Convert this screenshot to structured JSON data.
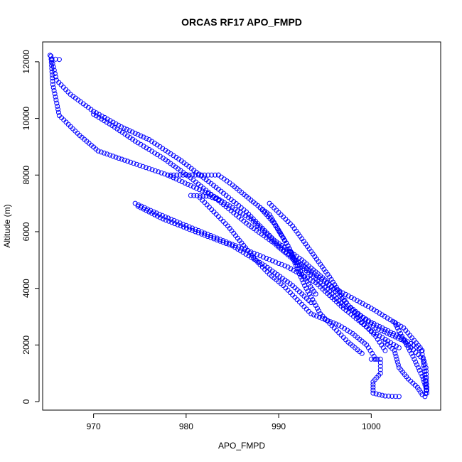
{
  "chart_data": {
    "type": "scatter",
    "title": "ORCAS RF17 APO_FMPD",
    "xlabel": "APO_FMPD",
    "ylabel": "Altitude (m)",
    "xlim": [
      964.5,
      1007.5
    ],
    "ylim": [
      -300,
      12700
    ],
    "xticks": [
      970,
      980,
      990,
      1000
    ],
    "yticks": [
      0,
      2000,
      4000,
      6000,
      8000,
      10000,
      12000
    ],
    "grid": false,
    "marker": "open-circle",
    "color": "#0000ff",
    "segments": [
      {
        "x": [
          965.3,
          965.5,
          966.3
        ],
        "y": [
          12230,
          12100,
          12080
        ]
      },
      {
        "x": [
          965.4,
          965.6,
          966.3,
          968.5,
          970.5,
          974.0,
          978.0,
          983.0,
          987.0,
          990.0,
          993.0,
          996.0,
          1000.0,
          1003.5,
          1005.3,
          1005.9,
          1006.0,
          1005.8
        ],
        "y": [
          12200,
          11200,
          10100,
          9400,
          8850,
          8450,
          8000,
          7250,
          6450,
          5500,
          4700,
          4000,
          3300,
          2600,
          1900,
          1200,
          500,
          180
        ]
      },
      {
        "x": [
          965.5,
          966.0,
          967.5,
          970.0,
          973.0,
          976.0,
          979.5,
          983.5,
          986.5,
          989.5,
          992.5,
          995.0,
          997.5,
          1000.5,
          1003.5,
          1005.6,
          1006.0
        ],
        "y": [
          12050,
          11350,
          10850,
          10250,
          9700,
          9250,
          8500,
          7500,
          6700,
          5700,
          5000,
          4300,
          3400,
          2600,
          2150,
          1500,
          300
        ]
      },
      {
        "x": [
          970.0,
          972.0,
          974.5,
          977.5,
          980.5,
          983.5,
          986.5,
          989.5,
          992.0,
          994.5,
          997.0,
          1000.0,
          1003.0,
          1005.5
        ],
        "y": [
          10150,
          9750,
          9200,
          8600,
          7900,
          7100,
          6300,
          5600,
          4900,
          4200,
          3400,
          2800,
          2300,
          1800
        ]
      },
      {
        "x": [
          974.5,
          976.5,
          979.0,
          982.0,
          985.0,
          988.0,
          991.0,
          994.0,
          997.0,
          1000.0,
          1003.0
        ],
        "y": [
          7000,
          6700,
          6350,
          5950,
          5550,
          5150,
          4750,
          4200,
          3300,
          2500,
          1900
        ]
      },
      {
        "x": [
          974.8,
          977.5,
          981.0,
          985.0,
          988.5,
          991.5,
          993.5
        ],
        "y": [
          6900,
          6450,
          6000,
          5500,
          4800,
          4100,
          3500
        ]
      },
      {
        "x": [
          978.0,
          980.0,
          982.0,
          983.5
        ],
        "y": [
          8000,
          8000,
          8000,
          8000
        ]
      },
      {
        "x": [
          983.5,
          985.0,
          986.5,
          988.0,
          989.5,
          991.0,
          992.5,
          994.0
        ],
        "y": [
          8000,
          7650,
          7250,
          6850,
          6300,
          5500,
          4500,
          3800
        ]
      },
      {
        "x": [
          980.5,
          982.5,
          983.5
        ],
        "y": [
          7280,
          7250,
          7120
        ]
      },
      {
        "x": [
          981.5,
          983.0,
          984.5,
          986.0,
          987.5,
          989.0,
          990.5,
          992.0,
          993.5,
          995.0,
          996.5,
          998.0,
          999.5,
          1000.5
        ],
        "y": [
          7200,
          6700,
          6200,
          5600,
          5000,
          4500,
          4100,
          3600,
          3100,
          2900,
          2700,
          2400,
          2000,
          1500
        ]
      },
      {
        "x": [
          988.0,
          989.0,
          990.0,
          991.0,
          992.0,
          992.8,
          993.5,
          994.5,
          996.0,
          997.5,
          999.0
        ],
        "y": [
          6850,
          6600,
          6050,
          5500,
          4700,
          4100,
          3700,
          3100,
          2600,
          2100,
          1700
        ]
      },
      {
        "x": [
          989.0,
          991.5,
          993.5,
          995.5,
          997.5,
          999.0,
          1000.5,
          1001.5
        ],
        "y": [
          7000,
          6200,
          5300,
          4400,
          3400,
          2800,
          2300,
          1800
        ]
      },
      {
        "x": [
          1000.0,
          1001.0,
          1001.0,
          1000.2,
          1000.2,
          1001.5,
          1003.0
        ],
        "y": [
          1500,
          1500,
          1000,
          700,
          300,
          200,
          180
        ]
      },
      {
        "x": [
          1001.5,
          1002.5,
          1003.0,
          1004.0,
          1005.0,
          1005.5
        ],
        "y": [
          2100,
          1800,
          1200,
          800,
          500,
          250
        ]
      },
      {
        "x": [
          1002.5,
          1003.5,
          1004.5,
          1005.5,
          1006.0
        ],
        "y": [
          2800,
          2200,
          1600,
          900,
          400
        ]
      }
    ]
  }
}
